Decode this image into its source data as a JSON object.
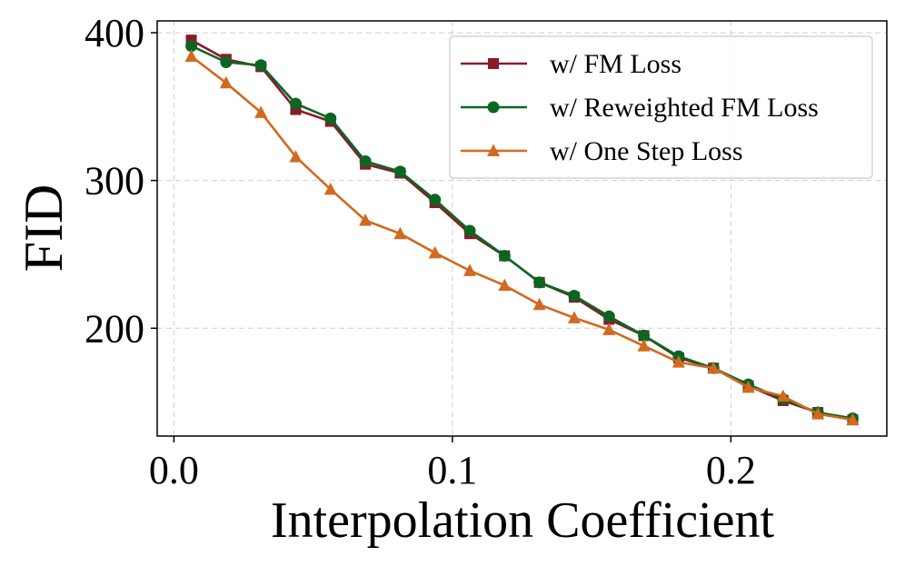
{
  "chart_data": {
    "type": "line",
    "title": "",
    "xlabel": "Interpolation Coefficient",
    "ylabel": "FID",
    "xlim": [
      -0.006,
      0.256
    ],
    "ylim": [
      127,
      408
    ],
    "xticks": [
      0.0,
      0.1,
      0.2
    ],
    "xtick_labels": [
      "0.0",
      "0.1",
      "0.2"
    ],
    "yticks": [
      200,
      300,
      400
    ],
    "ytick_labels": [
      "200",
      "300",
      "400"
    ],
    "grid": true,
    "legend_position": "top-right",
    "x": [
      0.00625,
      0.01875,
      0.03125,
      0.04375,
      0.05625,
      0.06875,
      0.08125,
      0.09375,
      0.10625,
      0.11875,
      0.13125,
      0.14375,
      0.15625,
      0.16875,
      0.18125,
      0.19375,
      0.20625,
      0.21875,
      0.23125,
      0.24375
    ],
    "series": [
      {
        "name": "w/ FM Loss",
        "color": "#8b1a2a",
        "marker": "square",
        "values": [
          395,
          382,
          377,
          348,
          340,
          311,
          305,
          285,
          264,
          249,
          231,
          221,
          206,
          195,
          180,
          173,
          161,
          151,
          143,
          138
        ]
      },
      {
        "name": "w/ Reweighted FM Loss",
        "color": "#0b6623",
        "marker": "circle",
        "values": [
          391,
          380,
          378,
          352,
          342,
          313,
          306,
          287,
          266,
          249,
          231,
          222,
          208,
          195,
          181,
          173,
          162,
          152,
          143,
          139
        ]
      },
      {
        "name": "w/ One Step Loss",
        "color": "#d2691e",
        "marker": "triangle",
        "values": [
          384,
          366,
          346,
          316,
          294,
          273,
          264,
          251,
          239,
          229,
          216,
          207,
          199,
          188,
          177,
          173,
          160,
          154,
          142,
          138
        ]
      }
    ]
  }
}
